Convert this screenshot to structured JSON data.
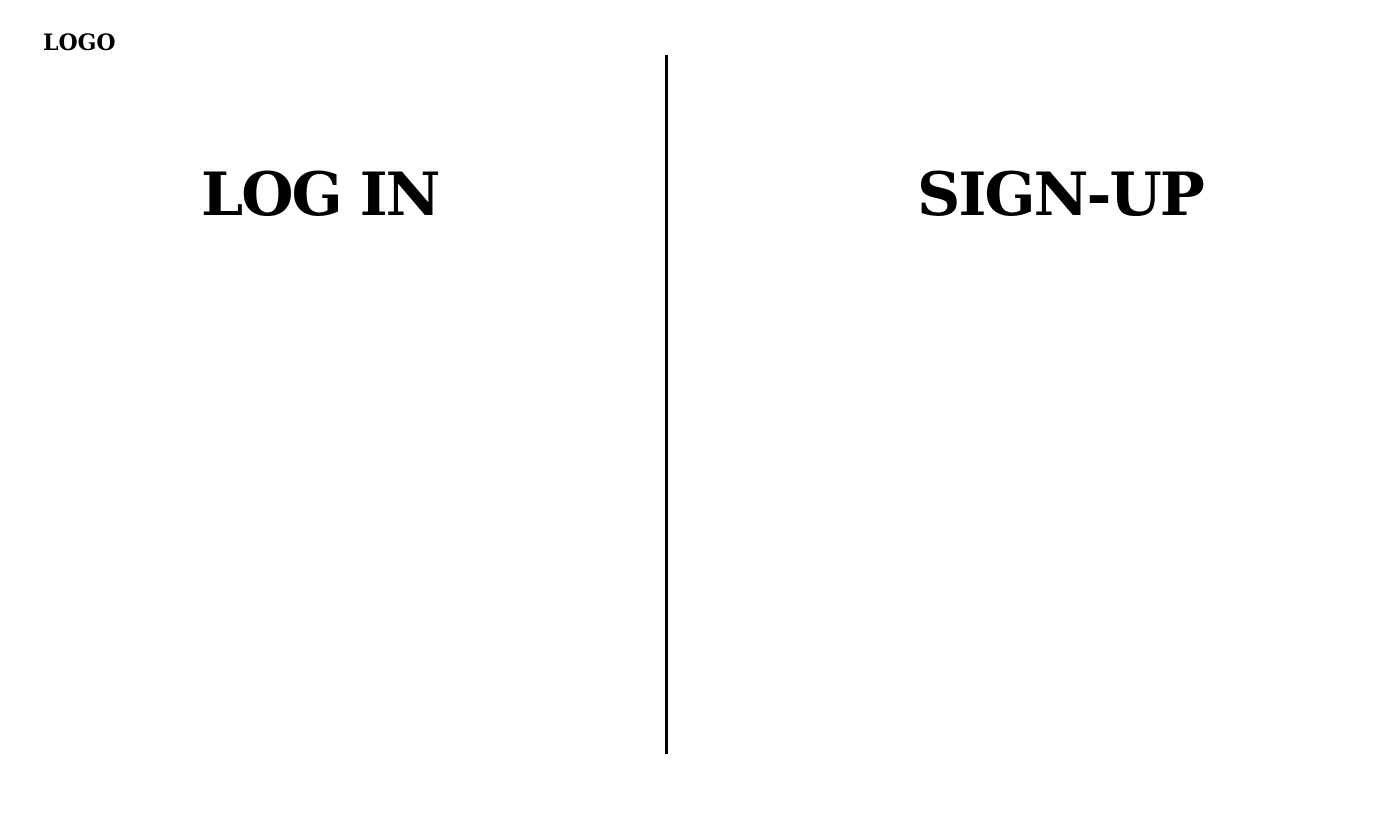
{
  "header": {
    "logo_text": "LOGO"
  },
  "panels": {
    "login": {
      "title": "LOG IN"
    },
    "signup": {
      "title": "SIGN-UP"
    }
  },
  "colors": {
    "background": "#ffffff",
    "text": "#000000",
    "divider": "#000000"
  }
}
